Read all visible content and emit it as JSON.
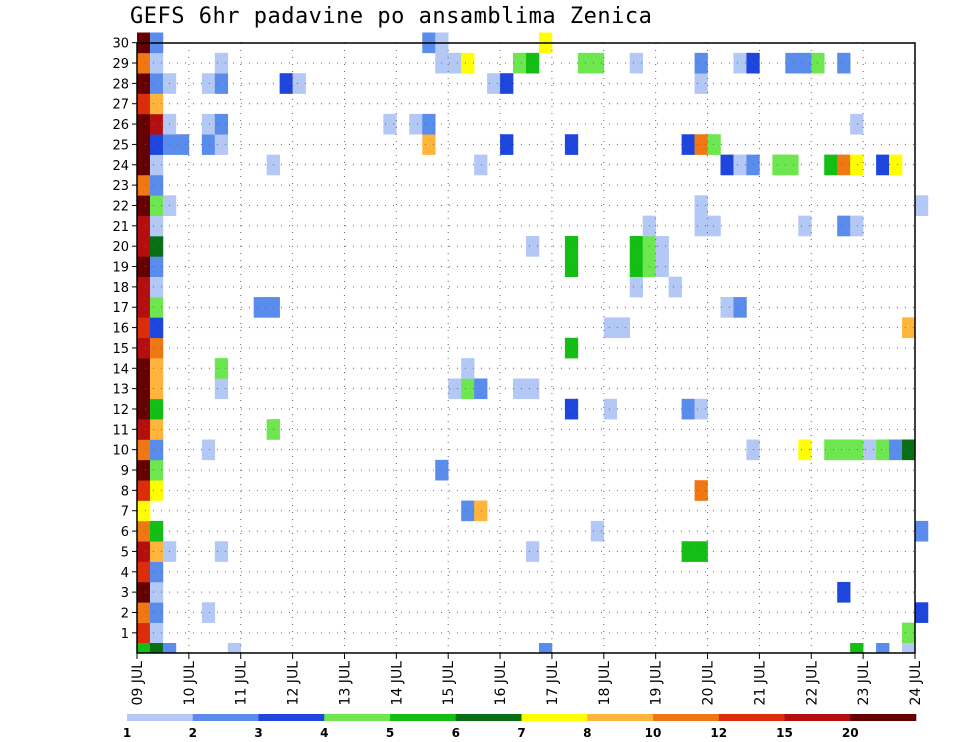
{
  "chart_data": {
    "type": "heatmap",
    "title": "GEFS 6hr padavine po ansamblima Zenica",
    "x_tick_labels": [
      "09 JUL",
      "10 JUL",
      "11 JUL",
      "12 JUL",
      "13 JUL",
      "14 JUL",
      "15 JUL",
      "16 JUL",
      "17 JUL",
      "18 JUL",
      "19 JUL",
      "20 JUL",
      "21 JUL",
      "22 JUL",
      "23 JUL",
      "24 JUL"
    ],
    "y_tick_labels": [
      "1",
      "2",
      "3",
      "4",
      "5",
      "6",
      "7",
      "8",
      "9",
      "10",
      "11",
      "12",
      "13",
      "14",
      "15",
      "16",
      "17",
      "18",
      "19",
      "20",
      "21",
      "22",
      "23",
      "24",
      "25",
      "26",
      "27",
      "28",
      "29",
      "30"
    ],
    "xlim_days": [
      0,
      15
    ],
    "ylim_members": [
      0,
      30
    ],
    "grid": true,
    "legend_placement": "bottom",
    "legend": {
      "labels": [
        "1",
        "2",
        "3",
        "4",
        "5",
        "6",
        "7",
        "8",
        "10",
        "12",
        "15",
        "20"
      ],
      "colors": [
        "#b4c8f5",
        "#5a8ceb",
        "#1e46dc",
        "#6ee650",
        "#14be14",
        "#0a6e14",
        "#ffff00",
        "#ffb43c",
        "#f07814",
        "#dc2d0a",
        "#b40f0f",
        "#640000"
      ]
    },
    "cell_width_days": 0.25,
    "cells": [
      {
        "m": 1,
        "x": 0,
        "c": 9
      },
      {
        "m": 1,
        "x": 0.25,
        "c": 0
      },
      {
        "m": 1,
        "x": 14.75,
        "c": 3
      },
      {
        "m": 2,
        "x": 0,
        "c": 8
      },
      {
        "m": 2,
        "x": 0.25,
        "c": 1
      },
      {
        "m": 2,
        "x": 1.25,
        "c": 0
      },
      {
        "m": 2,
        "x": 15,
        "c": 2
      },
      {
        "m": 3,
        "x": 0,
        "c": 11
      },
      {
        "m": 3,
        "x": 0.25,
        "c": 0
      },
      {
        "m": 3,
        "x": 13.5,
        "c": 2
      },
      {
        "m": 4,
        "x": 0,
        "c": 9
      },
      {
        "m": 4,
        "x": 0.25,
        "c": 1
      },
      {
        "m": 5,
        "x": 0,
        "c": 10
      },
      {
        "m": 5,
        "x": 0.25,
        "c": 7
      },
      {
        "m": 5,
        "x": 0.5,
        "c": 0
      },
      {
        "m": 5,
        "x": 1.5,
        "c": 0
      },
      {
        "m": 5,
        "x": 7.5,
        "c": 0
      },
      {
        "m": 5,
        "x": 10.5,
        "c": 4
      },
      {
        "m": 5,
        "x": 10.75,
        "c": 4
      },
      {
        "m": 6,
        "x": 0,
        "c": 8
      },
      {
        "m": 6,
        "x": 0.25,
        "c": 4
      },
      {
        "m": 6,
        "x": 8.75,
        "c": 0
      },
      {
        "m": 6,
        "x": 15,
        "c": 1
      },
      {
        "m": 7,
        "x": 0,
        "c": 6
      },
      {
        "m": 7,
        "x": 6.25,
        "c": 1
      },
      {
        "m": 7,
        "x": 6.5,
        "c": 7
      },
      {
        "m": 8,
        "x": 0,
        "c": 9
      },
      {
        "m": 8,
        "x": 0.25,
        "c": 6
      },
      {
        "m": 8,
        "x": 10.75,
        "c": 8
      },
      {
        "m": 9,
        "x": 0,
        "c": 11
      },
      {
        "m": 9,
        "x": 0.25,
        "c": 3
      },
      {
        "m": 9,
        "x": 5.75,
        "c": 1
      },
      {
        "m": 10,
        "x": 0,
        "c": 8
      },
      {
        "m": 10,
        "x": 0.25,
        "c": 1
      },
      {
        "m": 10,
        "x": 1.25,
        "c": 0
      },
      {
        "m": 10,
        "x": 11.75,
        "c": 0
      },
      {
        "m": 10,
        "x": 12.75,
        "c": 6
      },
      {
        "m": 10,
        "x": 13.25,
        "c": 3
      },
      {
        "m": 10,
        "x": 13.5,
        "c": 3
      },
      {
        "m": 10,
        "x": 13.75,
        "c": 3
      },
      {
        "m": 10,
        "x": 14,
        "c": 0
      },
      {
        "m": 10,
        "x": 14.25,
        "c": 3
      },
      {
        "m": 10,
        "x": 14.5,
        "c": 1
      },
      {
        "m": 10,
        "x": 14.75,
        "c": 5
      },
      {
        "m": 11,
        "x": 0,
        "c": 10
      },
      {
        "m": 11,
        "x": 0.25,
        "c": 7
      },
      {
        "m": 11,
        "x": 2.5,
        "c": 3
      },
      {
        "m": 12,
        "x": 0,
        "c": 11
      },
      {
        "m": 12,
        "x": 0.25,
        "c": 4
      },
      {
        "m": 12,
        "x": 8.25,
        "c": 2
      },
      {
        "m": 12,
        "x": 9,
        "c": 0
      },
      {
        "m": 12,
        "x": 10.5,
        "c": 1
      },
      {
        "m": 12,
        "x": 10.75,
        "c": 0
      },
      {
        "m": 13,
        "x": 0,
        "c": 11
      },
      {
        "m": 13,
        "x": 0.25,
        "c": 7
      },
      {
        "m": 13,
        "x": 1.5,
        "c": 0
      },
      {
        "m": 13,
        "x": 6,
        "c": 0
      },
      {
        "m": 13,
        "x": 6.25,
        "c": 3
      },
      {
        "m": 13,
        "x": 6.5,
        "c": 1
      },
      {
        "m": 13,
        "x": 7.25,
        "c": 0
      },
      {
        "m": 13,
        "x": 7.5,
        "c": 0
      },
      {
        "m": 14,
        "x": 0,
        "c": 11
      },
      {
        "m": 14,
        "x": 0.25,
        "c": 7
      },
      {
        "m": 14,
        "x": 1.5,
        "c": 3
      },
      {
        "m": 14,
        "x": 6.25,
        "c": 0
      },
      {
        "m": 15,
        "x": 0,
        "c": 10
      },
      {
        "m": 15,
        "x": 0.25,
        "c": 8
      },
      {
        "m": 15,
        "x": 8.25,
        "c": 4
      },
      {
        "m": 16,
        "x": 0,
        "c": 9
      },
      {
        "m": 16,
        "x": 0.25,
        "c": 2
      },
      {
        "m": 16,
        "x": 9,
        "c": 0
      },
      {
        "m": 16,
        "x": 9.25,
        "c": 0
      },
      {
        "m": 16,
        "x": 14.75,
        "c": 7
      },
      {
        "m": 17,
        "x": 0,
        "c": 10
      },
      {
        "m": 17,
        "x": 0.25,
        "c": 3
      },
      {
        "m": 17,
        "x": 2.25,
        "c": 1
      },
      {
        "m": 17,
        "x": 2.5,
        "c": 1
      },
      {
        "m": 17,
        "x": 11.25,
        "c": 0
      },
      {
        "m": 17,
        "x": 11.5,
        "c": 1
      },
      {
        "m": 18,
        "x": 0,
        "c": 10
      },
      {
        "m": 18,
        "x": 0.25,
        "c": 0
      },
      {
        "m": 18,
        "x": 9.5,
        "c": 0
      },
      {
        "m": 18,
        "x": 10.25,
        "c": 0
      },
      {
        "m": 19,
        "x": 0,
        "c": 11
      },
      {
        "m": 19,
        "x": 0.25,
        "c": 1
      },
      {
        "m": 19,
        "x": 8.25,
        "c": 4
      },
      {
        "m": 19,
        "x": 9.5,
        "c": 4
      },
      {
        "m": 19,
        "x": 9.75,
        "c": 3
      },
      {
        "m": 19,
        "x": 10,
        "c": 0
      },
      {
        "m": 20,
        "x": 0,
        "c": 10
      },
      {
        "m": 20,
        "x": 0.25,
        "c": 5
      },
      {
        "m": 20,
        "x": 7.5,
        "c": 0
      },
      {
        "m": 20,
        "x": 8.25,
        "c": 4
      },
      {
        "m": 20,
        "x": 9.5,
        "c": 4
      },
      {
        "m": 20,
        "x": 9.75,
        "c": 3
      },
      {
        "m": 20,
        "x": 10,
        "c": 0
      },
      {
        "m": 21,
        "x": 0,
        "c": 10
      },
      {
        "m": 21,
        "x": 0.25,
        "c": 0
      },
      {
        "m": 21,
        "x": 9.75,
        "c": 0
      },
      {
        "m": 21,
        "x": 10.75,
        "c": 0
      },
      {
        "m": 21,
        "x": 11,
        "c": 0
      },
      {
        "m": 21,
        "x": 12.75,
        "c": 0
      },
      {
        "m": 21,
        "x": 13.5,
        "c": 1
      },
      {
        "m": 21,
        "x": 13.75,
        "c": 0
      },
      {
        "m": 22,
        "x": 0,
        "c": 11
      },
      {
        "m": 22,
        "x": 0.25,
        "c": 3
      },
      {
        "m": 22,
        "x": 0.5,
        "c": 0
      },
      {
        "m": 22,
        "x": 10.75,
        "c": 0
      },
      {
        "m": 22,
        "x": 15,
        "c": 0
      },
      {
        "m": 23,
        "x": 0,
        "c": 8
      },
      {
        "m": 23,
        "x": 0.25,
        "c": 1
      },
      {
        "m": 24,
        "x": 0,
        "c": 11
      },
      {
        "m": 24,
        "x": 0.25,
        "c": 0
      },
      {
        "m": 24,
        "x": 2.5,
        "c": 0
      },
      {
        "m": 24,
        "x": 6.5,
        "c": 0
      },
      {
        "m": 24,
        "x": 11.25,
        "c": 2
      },
      {
        "m": 24,
        "x": 11.5,
        "c": 0
      },
      {
        "m": 24,
        "x": 11.75,
        "c": 1
      },
      {
        "m": 24,
        "x": 12.25,
        "c": 3
      },
      {
        "m": 24,
        "x": 12.5,
        "c": 3
      },
      {
        "m": 24,
        "x": 13.25,
        "c": 4
      },
      {
        "m": 24,
        "x": 13.5,
        "c": 8
      },
      {
        "m": 24,
        "x": 13.75,
        "c": 6
      },
      {
        "m": 24,
        "x": 14.25,
        "c": 2
      },
      {
        "m": 24,
        "x": 14.5,
        "c": 6
      },
      {
        "m": 25,
        "x": 0,
        "c": 11
      },
      {
        "m": 25,
        "x": 0.25,
        "c": 2
      },
      {
        "m": 25,
        "x": 0.5,
        "c": 1
      },
      {
        "m": 25,
        "x": 0.75,
        "c": 1
      },
      {
        "m": 25,
        "x": 1.25,
        "c": 1
      },
      {
        "m": 25,
        "x": 1.5,
        "c": 0
      },
      {
        "m": 25,
        "x": 5.5,
        "c": 7
      },
      {
        "m": 25,
        "x": 7,
        "c": 2
      },
      {
        "m": 25,
        "x": 8.25,
        "c": 2
      },
      {
        "m": 25,
        "x": 10.5,
        "c": 2
      },
      {
        "m": 25,
        "x": 10.75,
        "c": 8
      },
      {
        "m": 25,
        "x": 11,
        "c": 3
      },
      {
        "m": 26,
        "x": 0,
        "c": 11
      },
      {
        "m": 26,
        "x": 0.25,
        "c": 10
      },
      {
        "m": 26,
        "x": 0.5,
        "c": 0
      },
      {
        "m": 26,
        "x": 1.25,
        "c": 0
      },
      {
        "m": 26,
        "x": 1.5,
        "c": 1
      },
      {
        "m": 26,
        "x": 4.75,
        "c": 0
      },
      {
        "m": 26,
        "x": 5.25,
        "c": 0
      },
      {
        "m": 26,
        "x": 5.5,
        "c": 1
      },
      {
        "m": 26,
        "x": 13.75,
        "c": 0
      },
      {
        "m": 27,
        "x": 0,
        "c": 9
      },
      {
        "m": 27,
        "x": 0.25,
        "c": 7
      },
      {
        "m": 28,
        "x": 0,
        "c": 11
      },
      {
        "m": 28,
        "x": 0.25,
        "c": 1
      },
      {
        "m": 28,
        "x": 0.5,
        "c": 0
      },
      {
        "m": 28,
        "x": 1.25,
        "c": 0
      },
      {
        "m": 28,
        "x": 1.5,
        "c": 1
      },
      {
        "m": 28,
        "x": 2.75,
        "c": 2
      },
      {
        "m": 28,
        "x": 3,
        "c": 0
      },
      {
        "m": 28,
        "x": 6.75,
        "c": 0
      },
      {
        "m": 28,
        "x": 7,
        "c": 2
      },
      {
        "m": 28,
        "x": 10.75,
        "c": 0
      },
      {
        "m": 29,
        "x": 0,
        "c": 8
      },
      {
        "m": 29,
        "x": 0.25,
        "c": 0
      },
      {
        "m": 29,
        "x": 1.5,
        "c": 0
      },
      {
        "m": 29,
        "x": 5.75,
        "c": 0
      },
      {
        "m": 29,
        "x": 6,
        "c": 0
      },
      {
        "m": 29,
        "x": 6.25,
        "c": 6
      },
      {
        "m": 29,
        "x": 7.25,
        "c": 3
      },
      {
        "m": 29,
        "x": 7.5,
        "c": 4
      },
      {
        "m": 29,
        "x": 8.5,
        "c": 3
      },
      {
        "m": 29,
        "x": 8.75,
        "c": 3
      },
      {
        "m": 29,
        "x": 9.5,
        "c": 0
      },
      {
        "m": 29,
        "x": 10.75,
        "c": 1
      },
      {
        "m": 29,
        "x": 11.5,
        "c": 0
      },
      {
        "m": 29,
        "x": 11.75,
        "c": 2
      },
      {
        "m": 29,
        "x": 12.5,
        "c": 1
      },
      {
        "m": 29,
        "x": 12.75,
        "c": 1
      },
      {
        "m": 29,
        "x": 13,
        "c": 3
      },
      {
        "m": 29,
        "x": 13.5,
        "c": 1
      },
      {
        "m": 30,
        "x": 0,
        "c": 11
      },
      {
        "m": 30,
        "x": 0.25,
        "c": 1
      },
      {
        "m": 30,
        "x": 5.5,
        "c": 1
      },
      {
        "m": 30,
        "x": 5.75,
        "c": 0
      },
      {
        "m": 30,
        "x": 7.75,
        "c": 6
      }
    ],
    "bottom_row_cells": [
      {
        "x": 0,
        "c": 4
      },
      {
        "x": 0.25,
        "c": 5
      },
      {
        "x": 0.5,
        "c": 1
      },
      {
        "x": 1.75,
        "c": 0
      },
      {
        "x": 7.75,
        "c": 1
      },
      {
        "x": 13.75,
        "c": 4
      },
      {
        "x": 14.25,
        "c": 1
      },
      {
        "x": 14.75,
        "c": 0
      }
    ]
  }
}
